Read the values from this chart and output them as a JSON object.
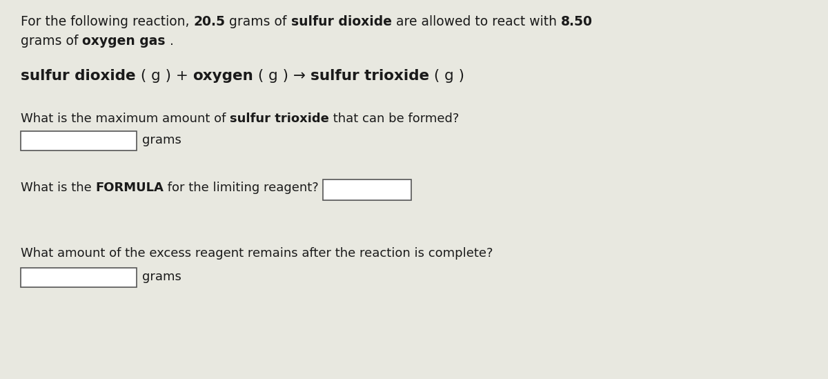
{
  "bg_color": "#e8e8e0",
  "text_color": "#1a1a1a",
  "font_size_main": 13.5,
  "font_size_reaction": 15.5,
  "font_size_questions": 13.0,
  "line1_parts": [
    [
      "For the following reaction, ",
      false
    ],
    [
      "20.5",
      true
    ],
    [
      " grams of ",
      false
    ],
    [
      "sulfur dioxide",
      true
    ],
    [
      " are allowed to react with ",
      false
    ],
    [
      "8.50",
      true
    ]
  ],
  "line2_parts": [
    [
      "grams of ",
      false
    ],
    [
      "oxygen gas",
      true
    ],
    [
      " .",
      false
    ]
  ],
  "reaction_parts": [
    [
      "sulfur dioxide",
      true
    ],
    [
      " ( g ) + ",
      false
    ],
    [
      "oxygen",
      true
    ],
    [
      " ( g ) → ",
      false
    ],
    [
      "sulfur trioxide",
      true
    ],
    [
      " ( g )",
      false
    ]
  ],
  "q1_parts": [
    [
      "What is the maximum amount of ",
      false
    ],
    [
      "sulfur trioxide",
      true
    ],
    [
      " that can be formed?",
      false
    ]
  ],
  "q2_parts": [
    [
      "What is the ",
      false
    ],
    [
      "FORMULA",
      true
    ],
    [
      " for the limiting reagent?",
      false
    ]
  ],
  "q3_text": "What amount of the excess reagent remains after the reaction is complete?",
  "box_color": "white",
  "box_edge_color": "#555555"
}
